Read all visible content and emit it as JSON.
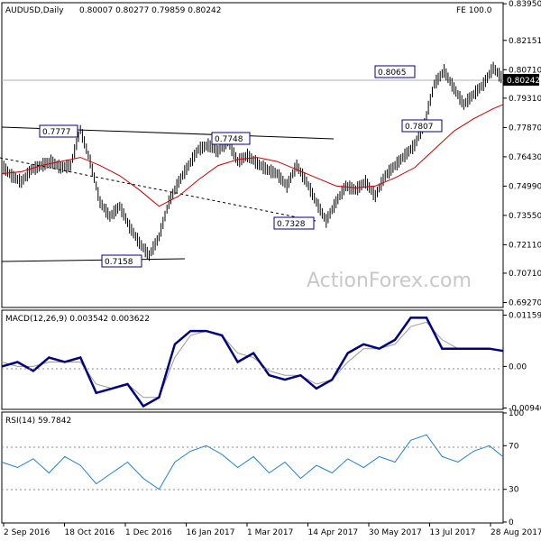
{
  "header": {
    "symbol_title": "AUDUSD,Daily",
    "ohlc": "0.80007 0.80277 0.79859 0.80242",
    "fe_label": "FE 100.0"
  },
  "watermark": "ActionForex.com",
  "colors": {
    "background": "#ffffff",
    "price": "#000000",
    "ma": "#cc0000",
    "macd": "#000080",
    "signal": "#999999",
    "rsi": "#1e7fd4",
    "label_border": "#000080",
    "watermark": "#c8c8c8"
  },
  "chart_data": [
    {
      "type": "line",
      "name": "price",
      "title": "AUDUSD,Daily",
      "ylim": [
        0.6907,
        0.8396
      ],
      "y_ticks": [
        "0.83950",
        "0.82151",
        "0.80710",
        "0.79310",
        "0.77870",
        "0.76430",
        "0.74990",
        "0.73550",
        "0.72110",
        "0.70710",
        "0.69270"
      ],
      "last_price": "0.80242",
      "x_ticks": [
        "2 Sep 2016",
        "18 Oct 2016",
        "1 Dec 2016",
        "16 Jan 2017",
        "1 Mar 2017",
        "14 Apr 2017",
        "30 May 2017",
        "13 Jul 2017",
        "28 Aug 2017"
      ],
      "series": [
        {
          "x": [
            0,
            5,
            10,
            15,
            20,
            25,
            30,
            35,
            40,
            45,
            50,
            55,
            60,
            65,
            70,
            75,
            80,
            85,
            90,
            95,
            100,
            105,
            110,
            115,
            120,
            125,
            130,
            135,
            140,
            145,
            150,
            155,
            160,
            165,
            170,
            175,
            180,
            185,
            190,
            195,
            200,
            205,
            210,
            215,
            220,
            225,
            230,
            235,
            240,
            245,
            250,
            255
          ],
          "values": [
            0.76,
            0.755,
            0.752,
            0.758,
            0.76,
            0.762,
            0.759,
            0.76,
            0.7777,
            0.762,
            0.742,
            0.735,
            0.74,
            0.73,
            0.722,
            0.7158,
            0.725,
            0.742,
            0.752,
            0.76,
            0.768,
            0.77,
            0.767,
            0.772,
            0.762,
            0.765,
            0.761,
            0.758,
            0.756,
            0.75,
            0.76,
            0.752,
            0.742,
            0.7328,
            0.742,
            0.75,
            0.748,
            0.752,
            0.745,
            0.755,
            0.76,
            0.765,
            0.77,
            0.7807,
            0.8,
            0.8065,
            0.798,
            0.79,
            0.795,
            0.8,
            0.808,
            0.8024
          ]
        },
        {
          "name": "MA",
          "x": [
            0,
            10,
            20,
            30,
            40,
            50,
            60,
            70,
            80,
            90,
            100,
            110,
            120,
            130,
            140,
            150,
            160,
            170,
            180,
            190,
            200,
            210,
            220,
            230,
            240,
            250,
            255
          ],
          "values": [
            0.756,
            0.757,
            0.76,
            0.762,
            0.764,
            0.76,
            0.755,
            0.748,
            0.74,
            0.745,
            0.753,
            0.76,
            0.763,
            0.764,
            0.762,
            0.758,
            0.754,
            0.75,
            0.749,
            0.75,
            0.754,
            0.759,
            0.768,
            0.777,
            0.783,
            0.788,
            0.79
          ]
        }
      ],
      "annotations": [
        "0.7777",
        "0.7748",
        "0.7328",
        "0.7158",
        "0.8065",
        "0.7807"
      ]
    },
    {
      "type": "line",
      "name": "MACD",
      "title": "MACD(12,26,9) 0.003542 0.003622",
      "ylim": [
        -0.0095,
        0.0125
      ],
      "y_ticks": [
        "0.01159",
        "0.00",
        "-0.009408"
      ],
      "series": [
        {
          "name": "MACD",
          "x": [
            0,
            8,
            16,
            24,
            32,
            40,
            48,
            56,
            64,
            72,
            80,
            88,
            96,
            104,
            112,
            120,
            128,
            136,
            144,
            152,
            160,
            168,
            176,
            184,
            192,
            200,
            208,
            216,
            224,
            232,
            240,
            248,
            255
          ],
          "values": [
            0.0,
            0.001,
            -0.001,
            0.002,
            0.001,
            0.002,
            -0.006,
            -0.005,
            -0.004,
            -0.009,
            -0.007,
            0.005,
            0.008,
            0.008,
            0.007,
            0.001,
            0.003,
            -0.002,
            -0.003,
            -0.002,
            -0.005,
            -0.003,
            0.003,
            0.005,
            0.004,
            0.006,
            0.011,
            0.011,
            0.004,
            0.004,
            0.004,
            0.004,
            0.0035
          ]
        },
        {
          "name": "Signal",
          "x": [
            0,
            8,
            16,
            24,
            32,
            40,
            48,
            56,
            64,
            72,
            80,
            88,
            96,
            104,
            112,
            120,
            128,
            136,
            144,
            152,
            160,
            168,
            176,
            184,
            192,
            200,
            208,
            216,
            224,
            232,
            240,
            248,
            255
          ],
          "values": [
            0.001,
            0.0,
            0.0,
            0.001,
            0.001,
            0.001,
            -0.004,
            -0.005,
            -0.004,
            -0.007,
            -0.007,
            0.002,
            0.007,
            0.008,
            0.007,
            0.003,
            0.002,
            -0.001,
            -0.002,
            -0.002,
            -0.004,
            -0.003,
            0.001,
            0.004,
            0.004,
            0.005,
            0.009,
            0.01,
            0.006,
            0.004,
            0.004,
            0.004,
            0.0036
          ]
        }
      ]
    },
    {
      "type": "line",
      "name": "RSI",
      "title": "RSI(14) 59.7842",
      "ylim": [
        0,
        100
      ],
      "y_ticks": [
        "100",
        "70",
        "30",
        "0"
      ],
      "series": [
        {
          "name": "RSI",
          "x": [
            0,
            8,
            16,
            24,
            32,
            40,
            48,
            56,
            64,
            72,
            80,
            88,
            96,
            104,
            112,
            120,
            128,
            136,
            144,
            152,
            160,
            168,
            176,
            184,
            192,
            200,
            208,
            216,
            224,
            232,
            240,
            248,
            255
          ],
          "values": [
            55,
            50,
            58,
            45,
            60,
            52,
            35,
            45,
            55,
            40,
            30,
            55,
            65,
            70,
            62,
            50,
            60,
            45,
            55,
            40,
            52,
            45,
            58,
            50,
            60,
            55,
            75,
            80,
            60,
            55,
            65,
            70,
            59.8
          ]
        }
      ]
    }
  ]
}
